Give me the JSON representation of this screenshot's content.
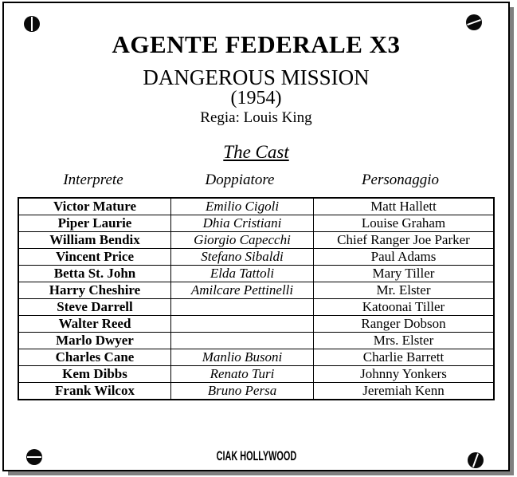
{
  "header": {
    "title_italian": "AGENTE FEDERALE X3",
    "title_original": "DANGEROUS MISSION",
    "year": "(1954)",
    "director_line": "Regia: Louis King",
    "cast_heading": "The Cast"
  },
  "cast_table": {
    "columns": [
      "Interprete",
      "Doppiatore",
      "Personaggio"
    ],
    "rows": [
      [
        "Victor Mature",
        "Emilio Cigoli",
        "Matt Hallett"
      ],
      [
        "Piper Laurie",
        "Dhia Cristiani",
        "Louise Graham"
      ],
      [
        "William Bendix",
        "Giorgio Capecchi",
        "Chief Ranger Joe Parker"
      ],
      [
        "Vincent Price",
        "Stefano Sibaldi",
        "Paul Adams"
      ],
      [
        "Betta St. John",
        "Elda Tattoli",
        "Mary Tiller"
      ],
      [
        "Harry Cheshire",
        "Amilcare Pettinelli",
        "Mr. Elster"
      ],
      [
        "Steve Darrell",
        "",
        "Katoonai Tiller"
      ],
      [
        "Walter Reed",
        "",
        "Ranger Dobson"
      ],
      [
        "Marlo Dwyer",
        "",
        "Mrs. Elster"
      ],
      [
        "Charles Cane",
        "Manlio Busoni",
        "Charlie Barrett"
      ],
      [
        "Kem Dibbs",
        "Renato Turi",
        "Johnny Yonkers"
      ],
      [
        "Frank Wilcox",
        "Bruno Persa",
        "Jeremiah Kenn"
      ]
    ]
  },
  "footer": {
    "logo": "CIAK HOLLYWOOD"
  },
  "colors": {
    "background": "#ffffff",
    "panel_border": "#000000",
    "shadow": "#808080",
    "text": "#000000"
  }
}
